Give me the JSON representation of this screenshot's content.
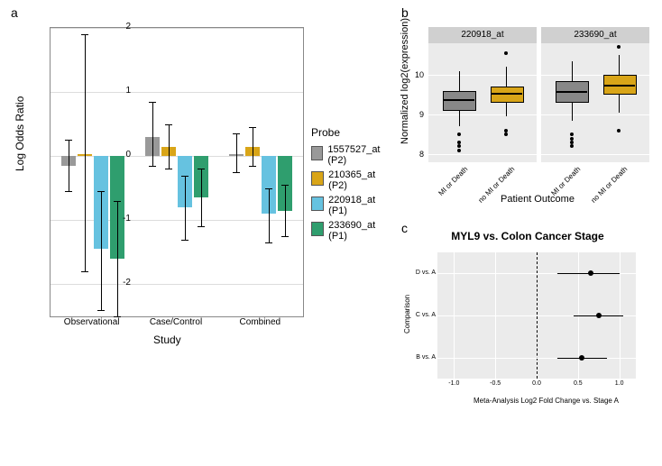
{
  "panelA": {
    "label": "a",
    "ylabel": "Log Odds Ratio",
    "xlabel": "Study",
    "ylim": [
      -2.5,
      2.0
    ],
    "yticks": [
      -2,
      -1,
      0,
      1,
      2
    ],
    "groups": [
      "Observational",
      "Case/Control",
      "Combined"
    ],
    "probes": [
      {
        "label": "1557527_at (P2)",
        "color": "#999999"
      },
      {
        "label": "210365_at (P2)",
        "color": "#d9a518"
      },
      {
        "label": "220918_at (P1)",
        "color": "#66c2e0"
      },
      {
        "label": "233690_at (P1)",
        "color": "#2f9e6e"
      }
    ],
    "legend_title": "Probe",
    "data": [
      [
        {
          "y": -0.15,
          "lo": -0.55,
          "hi": 0.25
        },
        {
          "y": 0.03,
          "lo": -1.8,
          "hi": 1.9
        },
        {
          "y": -1.45,
          "lo": -2.4,
          "hi": -0.55
        },
        {
          "y": -1.6,
          "lo": -2.5,
          "hi": -0.7
        }
      ],
      [
        {
          "y": 0.3,
          "lo": -0.15,
          "hi": 0.85
        },
        {
          "y": 0.15,
          "lo": -0.2,
          "hi": 0.5
        },
        {
          "y": -0.8,
          "lo": -1.3,
          "hi": -0.3
        },
        {
          "y": -0.65,
          "lo": -1.1,
          "hi": -0.2
        }
      ],
      [
        {
          "y": 0.03,
          "lo": -0.25,
          "hi": 0.35
        },
        {
          "y": 0.15,
          "lo": -0.15,
          "hi": 0.45
        },
        {
          "y": -0.9,
          "lo": -1.35,
          "hi": -0.5
        },
        {
          "y": -0.85,
          "lo": -1.25,
          "hi": -0.45
        }
      ]
    ]
  },
  "panelB": {
    "label": "b",
    "ylabel": "Normalized log2(expression)",
    "xlabel": "Patient Outcome",
    "facets": [
      "220918_at",
      "233690_at"
    ],
    "xcats": [
      "MI or Death",
      "no MI or Death"
    ],
    "ylim": [
      7.8,
      10.8
    ],
    "yticks": [
      8,
      9,
      10
    ],
    "colors": {
      "box1": "#888888",
      "box2": "#d9a518"
    },
    "grid_color": "#ffffff",
    "background": "#ebebeb",
    "boxes": [
      [
        {
          "q1": 9.15,
          "med": 9.4,
          "q3": 9.6,
          "lo": 8.7,
          "hi": 10.1,
          "out": [
            8.3,
            8.2,
            8.1,
            8.5
          ]
        },
        {
          "q1": 9.35,
          "med": 9.55,
          "q3": 9.7,
          "lo": 8.95,
          "hi": 10.2,
          "out": [
            8.6,
            8.5,
            10.55
          ]
        }
      ],
      [
        {
          "q1": 9.35,
          "med": 9.6,
          "q3": 9.85,
          "lo": 8.85,
          "hi": 10.35,
          "out": [
            8.5,
            8.4,
            8.3,
            8.2
          ]
        },
        {
          "q1": 9.55,
          "med": 9.75,
          "q3": 10.0,
          "lo": 9.05,
          "hi": 10.5,
          "out": [
            8.6,
            10.7
          ]
        }
      ]
    ]
  },
  "panelC": {
    "label": "c",
    "title": "MYL9 vs. Colon Cancer Stage",
    "ylabel": "Comparison",
    "xlabel": "Meta-Analysis Log2 Fold Change vs. Stage A",
    "xlim": [
      -1.2,
      1.2
    ],
    "xticks": [
      -1.0,
      -0.5,
      0.0,
      0.5,
      1.0
    ],
    "ycats": [
      "D vs. A",
      "C vs. A",
      "B vs. A"
    ],
    "vline_at": 0.0,
    "background": "#ebebeb",
    "points": [
      {
        "x": 0.65,
        "lo": 0.25,
        "hi": 1.0
      },
      {
        "x": 0.75,
        "lo": 0.45,
        "hi": 1.05
      },
      {
        "x": 0.55,
        "lo": 0.25,
        "hi": 0.85
      }
    ]
  }
}
